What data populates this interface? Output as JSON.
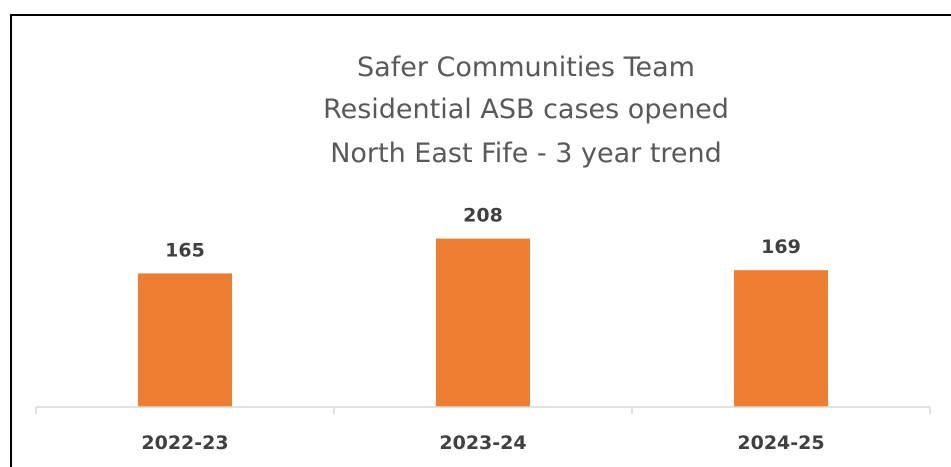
{
  "chart_data": {
    "type": "bar",
    "title_lines": [
      "Safer Communities Team",
      "Residential ASB cases opened",
      "North East Fife - 3 year trend"
    ],
    "categories": [
      "2022-23",
      "2023-24",
      "2024-25"
    ],
    "values": [
      165,
      208,
      169
    ],
    "data_labels": [
      "165",
      "208",
      "169"
    ],
    "bar_color": "#ED7D31",
    "axis_color": "#D9D9D9",
    "ylim": [
      0,
      220
    ],
    "grid": false,
    "legend": "none"
  }
}
